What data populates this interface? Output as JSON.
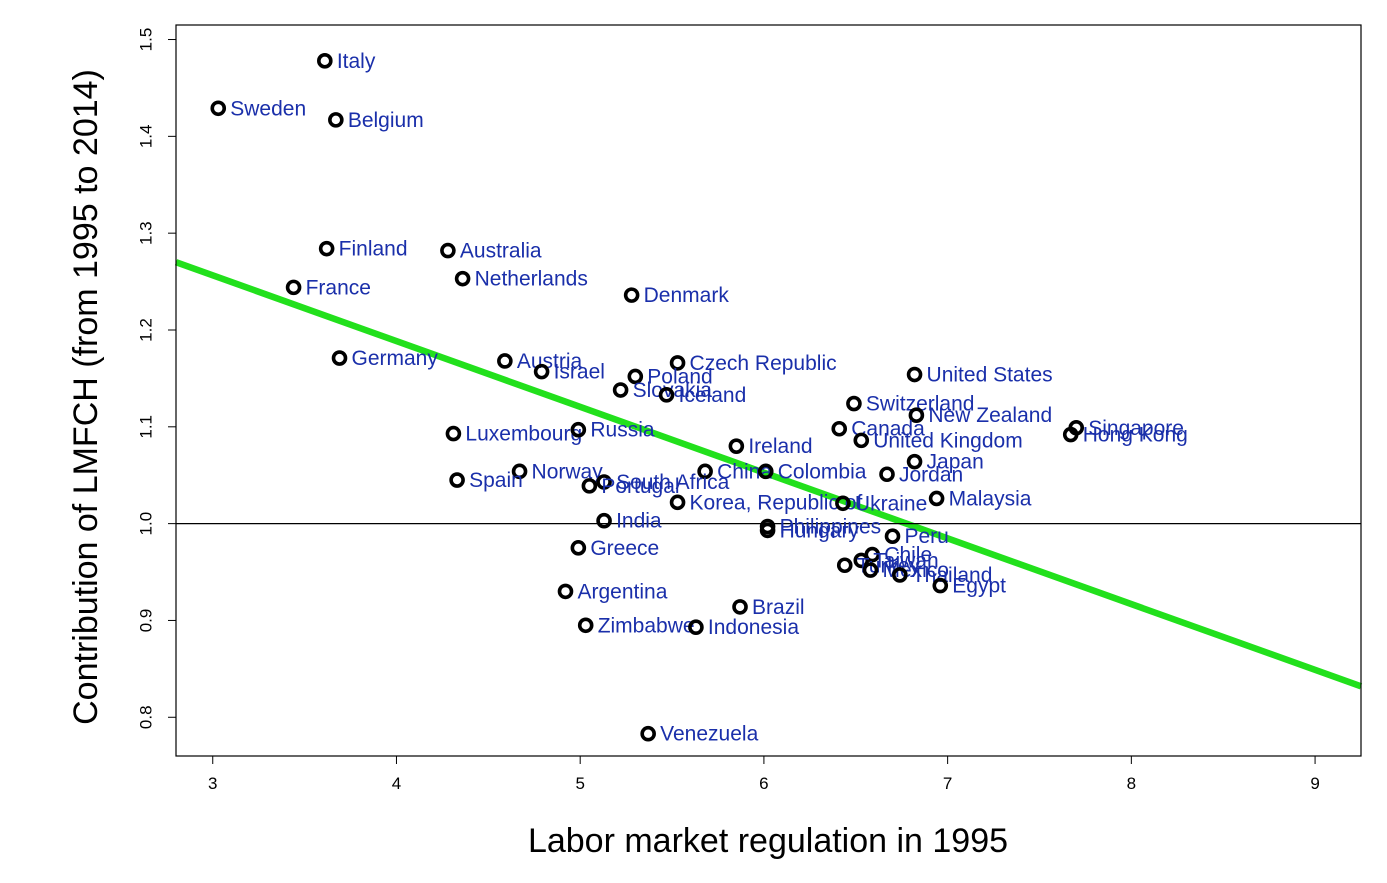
{
  "chart_data": {
    "type": "scatter",
    "title": "",
    "xlabel": "Labor market regulation in 1995",
    "ylabel": "Contribution of LMFCH (from 1995 to 2014)",
    "xlim": [
      2.8,
      9.25
    ],
    "ylim": [
      0.76,
      1.515
    ],
    "xticks": [
      "3",
      "4",
      "5",
      "6",
      "7",
      "8",
      "9"
    ],
    "yticks": [
      "0.8",
      "0.9",
      "1.0",
      "1.1",
      "1.2",
      "1.3",
      "1.4",
      "1.5"
    ],
    "grid": false,
    "reference_line_y": 1.0,
    "fit_line": {
      "x": [
        2.8,
        9.25
      ],
      "y": [
        1.27,
        0.832
      ],
      "color": "#22e01c"
    },
    "point_color": "#000000",
    "label_color": "#1a2faa",
    "points": [
      {
        "label": "Italy",
        "x": 3.61,
        "y": 1.478
      },
      {
        "label": "Sweden",
        "x": 3.03,
        "y": 1.429
      },
      {
        "label": "Belgium",
        "x": 3.67,
        "y": 1.417
      },
      {
        "label": "Finland",
        "x": 3.62,
        "y": 1.284
      },
      {
        "label": "Australia",
        "x": 4.28,
        "y": 1.282
      },
      {
        "label": "France",
        "x": 3.44,
        "y": 1.244
      },
      {
        "label": "Netherlands",
        "x": 4.36,
        "y": 1.253
      },
      {
        "label": "Denmark",
        "x": 5.28,
        "y": 1.236
      },
      {
        "label": "Germany",
        "x": 3.69,
        "y": 1.171
      },
      {
        "label": "Austria",
        "x": 4.59,
        "y": 1.168
      },
      {
        "label": "Israel",
        "x": 4.79,
        "y": 1.157
      },
      {
        "label": "Czech Republic",
        "x": 5.53,
        "y": 1.166
      },
      {
        "label": "Poland",
        "x": 5.3,
        "y": 1.152
      },
      {
        "label": "Slovakia",
        "x": 5.22,
        "y": 1.138
      },
      {
        "label": "Iceland",
        "x": 5.47,
        "y": 1.133
      },
      {
        "label": "United States",
        "x": 6.82,
        "y": 1.154
      },
      {
        "label": "Switzerland",
        "x": 6.49,
        "y": 1.124
      },
      {
        "label": "New Zealand",
        "x": 6.83,
        "y": 1.112
      },
      {
        "label": "Canada",
        "x": 6.41,
        "y": 1.098
      },
      {
        "label": "United Kingdom",
        "x": 6.53,
        "y": 1.086
      },
      {
        "label": "Singapore",
        "x": 7.7,
        "y": 1.099
      },
      {
        "label": "Hong Kong",
        "x": 7.67,
        "y": 1.092
      },
      {
        "label": "Luxembourg",
        "x": 4.31,
        "y": 1.093
      },
      {
        "label": "Russia",
        "x": 4.99,
        "y": 1.097
      },
      {
        "label": "Ireland",
        "x": 5.85,
        "y": 1.08
      },
      {
        "label": "Japan",
        "x": 6.82,
        "y": 1.064
      },
      {
        "label": "China",
        "x": 5.68,
        "y": 1.054
      },
      {
        "label": "Colombia",
        "x": 6.01,
        "y": 1.054
      },
      {
        "label": "Jordan",
        "x": 6.67,
        "y": 1.051
      },
      {
        "label": "Norway",
        "x": 4.67,
        "y": 1.054
      },
      {
        "label": "Spain",
        "x": 4.33,
        "y": 1.045
      },
      {
        "label": "South Africa",
        "x": 5.13,
        "y": 1.043
      },
      {
        "label": "Portugal",
        "x": 5.05,
        "y": 1.039
      },
      {
        "label": "Malaysia",
        "x": 6.94,
        "y": 1.026
      },
      {
        "label": "Korea, Republic of",
        "x": 5.53,
        "y": 1.022
      },
      {
        "label": "Ukraine",
        "x": 6.43,
        "y": 1.021
      },
      {
        "label": "India",
        "x": 5.13,
        "y": 1.003
      },
      {
        "label": "Philippines",
        "x": 6.02,
        "y": 0.997
      },
      {
        "label": "Hungary",
        "x": 6.02,
        "y": 0.993
      },
      {
        "label": "Peru",
        "x": 6.7,
        "y": 0.987
      },
      {
        "label": "Greece",
        "x": 4.99,
        "y": 0.975
      },
      {
        "label": "Chile",
        "x": 6.59,
        "y": 0.968
      },
      {
        "label": "Taiwan",
        "x": 6.53,
        "y": 0.962
      },
      {
        "label": "Turkey",
        "x": 6.44,
        "y": 0.957
      },
      {
        "label": "Mexico",
        "x": 6.58,
        "y": 0.952
      },
      {
        "label": "Thailand",
        "x": 6.74,
        "y": 0.947
      },
      {
        "label": "Egypt",
        "x": 6.96,
        "y": 0.936
      },
      {
        "label": "Argentina",
        "x": 4.92,
        "y": 0.93
      },
      {
        "label": "Brazil",
        "x": 5.87,
        "y": 0.914
      },
      {
        "label": "Zimbabwe",
        "x": 5.03,
        "y": 0.895
      },
      {
        "label": "Indonesia",
        "x": 5.63,
        "y": 0.893
      },
      {
        "label": "Venezuela",
        "x": 5.37,
        "y": 0.783
      }
    ]
  }
}
